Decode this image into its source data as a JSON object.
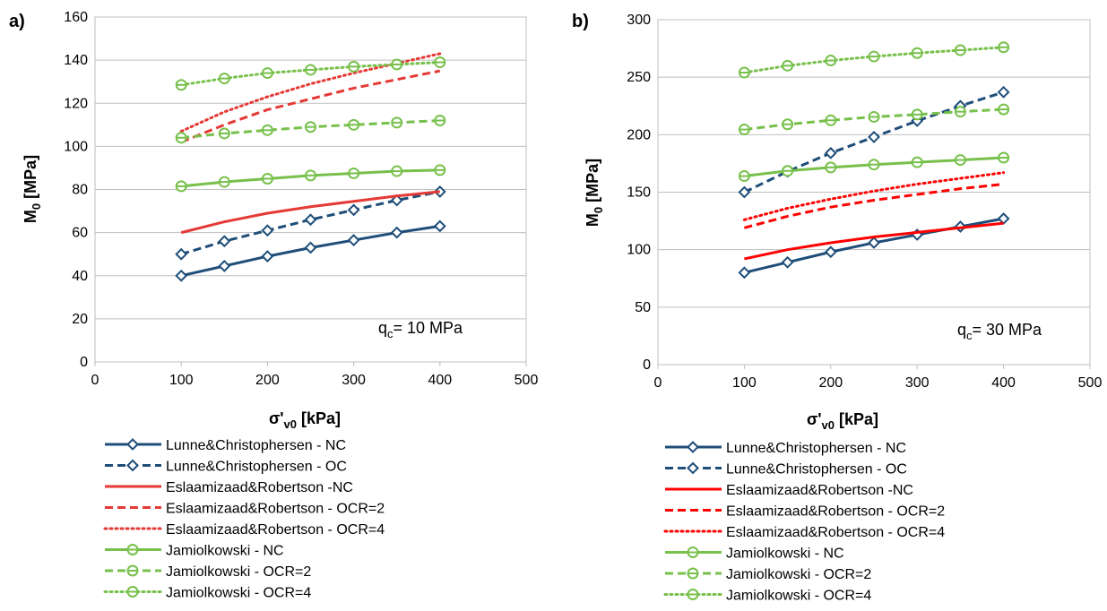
{
  "chart_data": [
    {
      "type": "line",
      "panel_label": "a)",
      "xlabel_main": "σ'",
      "xlabel_sub": "v0",
      "xlabel_unit": " [kPa]",
      "ylabel_main": "M",
      "ylabel_sub": "0",
      "ylabel_unit": " [MPa]",
      "xlim": [
        0,
        500
      ],
      "ylim": [
        0,
        160
      ],
      "xticks": [
        0,
        100,
        200,
        300,
        400,
        500
      ],
      "yticks": [
        0,
        20,
        40,
        60,
        80,
        100,
        120,
        140,
        160
      ],
      "grid": "horizontal",
      "annotation_main": "q",
      "annotation_sub": "c",
      "annotation_rest": "= 10 MPa",
      "series": [
        {
          "name": "Lunne&Christophersen - NC",
          "color": "#1f4e79",
          "dash": "solid",
          "marker": "diamond",
          "x": [
            100,
            150,
            200,
            250,
            300,
            350,
            400
          ],
          "y": [
            40,
            44.5,
            49,
            53,
            56.5,
            60,
            63
          ]
        },
        {
          "name": "Lunne&Christophersen - OC",
          "color": "#1f4e79",
          "dash": "dashed",
          "marker": "diamond",
          "x": [
            100,
            150,
            200,
            250,
            300,
            350,
            400
          ],
          "y": [
            50,
            56,
            61,
            66,
            70.5,
            75,
            79
          ]
        },
        {
          "name": "Eslaamizaad&Robertson -NC",
          "color": "#e53935",
          "dash": "solid",
          "marker": "none",
          "x": [
            100,
            150,
            200,
            250,
            300,
            350,
            400
          ],
          "y": [
            60,
            65,
            69,
            72,
            74.5,
            77,
            79
          ]
        },
        {
          "name": "Eslaamizaad&Robertson - OCR=2",
          "color": "#e53935",
          "dash": "dashed",
          "marker": "none",
          "x": [
            100,
            150,
            200,
            250,
            300,
            350,
            400
          ],
          "y": [
            102,
            110,
            117,
            122,
            127,
            131,
            135
          ]
        },
        {
          "name": "Eslaamizaad&Robertson - OCR=4",
          "color": "#e53935",
          "dash": "dotted",
          "marker": "none",
          "x": [
            100,
            150,
            200,
            250,
            300,
            350,
            400
          ],
          "y": [
            107,
            116,
            123,
            129,
            134,
            138.5,
            143
          ]
        },
        {
          "name": "Jamiolkowski - NC",
          "color": "#77c04b",
          "dash": "solid",
          "marker": "circle",
          "x": [
            100,
            150,
            200,
            250,
            300,
            350,
            400
          ],
          "y": [
            81.5,
            83.5,
            85,
            86.5,
            87.5,
            88.5,
            89
          ]
        },
        {
          "name": "Jamiolkowski - OCR=2",
          "color": "#77c04b",
          "dash": "dashed",
          "marker": "circle",
          "x": [
            100,
            150,
            200,
            250,
            300,
            350,
            400
          ],
          "y": [
            104,
            106,
            107.5,
            109,
            110,
            111,
            112
          ]
        },
        {
          "name": "Jamiolkowski - OCR=4",
          "color": "#77c04b",
          "dash": "dotted",
          "marker": "circle",
          "x": [
            100,
            150,
            200,
            250,
            300,
            350,
            400
          ],
          "y": [
            128.5,
            131.5,
            134,
            135.5,
            137,
            138,
            139
          ]
        }
      ]
    },
    {
      "type": "line",
      "panel_label": "b)",
      "xlabel_main": "σ'",
      "xlabel_sub": "v0",
      "xlabel_unit": " [kPa]",
      "ylabel_main": "M",
      "ylabel_sub": "0",
      "ylabel_unit": " [MPa]",
      "xlim": [
        0,
        500
      ],
      "ylim": [
        0,
        300
      ],
      "xticks": [
        0,
        100,
        200,
        300,
        400,
        500
      ],
      "yticks": [
        0,
        50,
        100,
        150,
        200,
        250,
        300
      ],
      "grid": "horizontal",
      "annotation_main": "q",
      "annotation_sub": "c",
      "annotation_rest": "= 30 MPa",
      "series": [
        {
          "name": "Lunne&Christophersen - NC",
          "color": "#1f4e79",
          "dash": "solid",
          "marker": "diamond",
          "x": [
            100,
            150,
            200,
            250,
            300,
            350,
            400
          ],
          "y": [
            80,
            89,
            98,
            106,
            113,
            120,
            127
          ]
        },
        {
          "name": "Lunne&Christophersen - OC",
          "color": "#1f4e79",
          "dash": "dashed",
          "marker": "diamond",
          "x": [
            100,
            150,
            200,
            250,
            300,
            350,
            400
          ],
          "y": [
            150,
            168,
            184,
            198,
            212,
            225,
            237
          ]
        },
        {
          "name": "Eslaamizaad&Robertson -NC",
          "color": "#ff0000",
          "dash": "solid",
          "marker": "none",
          "x": [
            100,
            150,
            200,
            250,
            300,
            350,
            400
          ],
          "y": [
            92,
            100,
            106,
            111,
            115,
            119,
            123
          ]
        },
        {
          "name": "Eslaamizaad&Robertson - OCR=2",
          "color": "#ff0000",
          "dash": "dashed",
          "marker": "none",
          "x": [
            100,
            150,
            200,
            250,
            300,
            350,
            400
          ],
          "y": [
            119,
            129,
            137,
            143,
            148,
            153,
            157
          ]
        },
        {
          "name": "Eslaamizaad&Robertson - OCR=4",
          "color": "#ff0000",
          "dash": "dotted",
          "marker": "none",
          "x": [
            100,
            150,
            200,
            250,
            300,
            350,
            400
          ],
          "y": [
            126,
            136,
            144,
            151,
            157,
            162,
            167
          ]
        },
        {
          "name": "Jamiolkowski - NC",
          "color": "#77c04b",
          "dash": "solid",
          "marker": "circle",
          "x": [
            100,
            150,
            200,
            250,
            300,
            350,
            400
          ],
          "y": [
            164,
            168.5,
            171.5,
            174,
            176,
            178,
            180
          ]
        },
        {
          "name": "Jamiolkowski - OCR=2",
          "color": "#77c04b",
          "dash": "dashed",
          "marker": "circle",
          "x": [
            100,
            150,
            200,
            250,
            300,
            350,
            400
          ],
          "y": [
            204.5,
            209,
            212.5,
            215.5,
            217.5,
            220,
            222
          ]
        },
        {
          "name": "Jamiolkowski - OCR=4",
          "color": "#77c04b",
          "dash": "dotted",
          "marker": "circle",
          "x": [
            100,
            150,
            200,
            250,
            300,
            350,
            400
          ],
          "y": [
            254,
            260,
            264.5,
            268,
            271,
            273.5,
            276
          ]
        }
      ]
    }
  ]
}
